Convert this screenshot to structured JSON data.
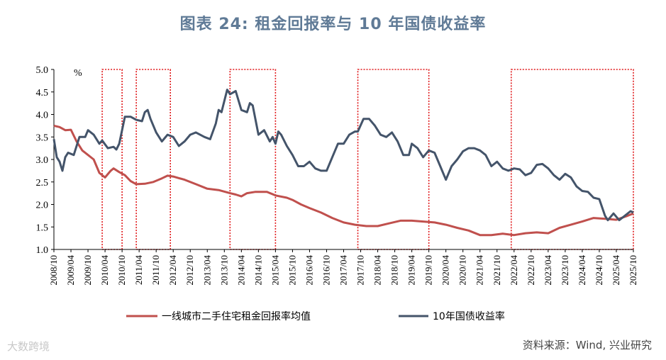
{
  "chart_data": {
    "type": "line",
    "title": "图表 24: 租金回报率与 10 年国债收益率",
    "ylabel": "%",
    "ylim": [
      1.0,
      5.0
    ],
    "yticks": [
      "5.0",
      "4.5",
      "4.0",
      "3.5",
      "3.0",
      "2.5",
      "2.0",
      "1.5",
      "1.0"
    ],
    "x_start": "2008/10",
    "x_tick_labels": [
      "2008/10",
      "2009/04",
      "2009/10",
      "2010/04",
      "2010/10",
      "2011/04",
      "2011/10",
      "2012/04",
      "2012/10",
      "2013/04",
      "2013/10",
      "2014/04",
      "2014/10",
      "2015/04",
      "2015/10",
      "2016/04",
      "2016/10",
      "2017/04",
      "2017/10",
      "2018/04",
      "2018/10",
      "2019/04",
      "2019/10",
      "2020/04",
      "2020/10",
      "2021/04",
      "2021/10",
      "2022/04",
      "2022/10",
      "2023/04",
      "2023/10",
      "2024/04",
      "2024/10",
      "2025/04",
      "2025/10"
    ],
    "highlight_periods": [
      {
        "start": "2010/03",
        "end": "2010/10"
      },
      {
        "start": "2011/03",
        "end": "2012/03"
      },
      {
        "start": "2013/12",
        "end": "2015/04"
      },
      {
        "start": "2017/09",
        "end": "2019/10"
      },
      {
        "start": "2022/03",
        "end": "2025/10"
      }
    ],
    "series": [
      {
        "name": "一线城市二手住宅租金回报率均值",
        "color": "#c0504d",
        "points": [
          [
            "2008/10",
            3.75
          ],
          [
            "2008/12",
            3.72
          ],
          [
            "2009/02",
            3.65
          ],
          [
            "2009/04",
            3.66
          ],
          [
            "2009/06",
            3.4
          ],
          [
            "2009/08",
            3.2
          ],
          [
            "2009/10",
            3.1
          ],
          [
            "2009/12",
            3.0
          ],
          [
            "2010/02",
            2.7
          ],
          [
            "2010/04",
            2.6
          ],
          [
            "2010/06",
            2.75
          ],
          [
            "2010/07",
            2.8
          ],
          [
            "2010/09",
            2.72
          ],
          [
            "2010/11",
            2.65
          ],
          [
            "2011/01",
            2.52
          ],
          [
            "2011/03",
            2.45
          ],
          [
            "2011/06",
            2.46
          ],
          [
            "2011/09",
            2.5
          ],
          [
            "2011/12",
            2.58
          ],
          [
            "2012/02",
            2.64
          ],
          [
            "2012/04",
            2.62
          ],
          [
            "2012/08",
            2.55
          ],
          [
            "2012/12",
            2.45
          ],
          [
            "2013/04",
            2.35
          ],
          [
            "2013/08",
            2.32
          ],
          [
            "2013/12",
            2.25
          ],
          [
            "2014/02",
            2.22
          ],
          [
            "2014/04",
            2.18
          ],
          [
            "2014/06",
            2.25
          ],
          [
            "2014/09",
            2.28
          ],
          [
            "2015/01",
            2.28
          ],
          [
            "2015/04",
            2.2
          ],
          [
            "2015/08",
            2.15
          ],
          [
            "2015/10",
            2.1
          ],
          [
            "2016/01",
            2.0
          ],
          [
            "2016/04",
            1.92
          ],
          [
            "2016/08",
            1.82
          ],
          [
            "2016/12",
            1.7
          ],
          [
            "2017/04",
            1.6
          ],
          [
            "2017/08",
            1.55
          ],
          [
            "2017/12",
            1.52
          ],
          [
            "2018/04",
            1.52
          ],
          [
            "2018/08",
            1.58
          ],
          [
            "2018/12",
            1.64
          ],
          [
            "2019/04",
            1.64
          ],
          [
            "2019/08",
            1.62
          ],
          [
            "2019/12",
            1.6
          ],
          [
            "2020/04",
            1.55
          ],
          [
            "2020/08",
            1.48
          ],
          [
            "2020/12",
            1.42
          ],
          [
            "2021/04",
            1.32
          ],
          [
            "2021/08",
            1.32
          ],
          [
            "2021/12",
            1.35
          ],
          [
            "2022/04",
            1.32
          ],
          [
            "2022/08",
            1.36
          ],
          [
            "2022/12",
            1.38
          ],
          [
            "2023/04",
            1.36
          ],
          [
            "2023/08",
            1.48
          ],
          [
            "2023/12",
            1.55
          ],
          [
            "2024/04",
            1.62
          ],
          [
            "2024/08",
            1.7
          ],
          [
            "2024/12",
            1.68
          ],
          [
            "2025/04",
            1.66
          ],
          [
            "2025/08",
            1.75
          ],
          [
            "2025/10",
            1.8
          ]
        ]
      },
      {
        "name": "10年国债收益率",
        "color": "#44546a",
        "points": [
          [
            "2008/10",
            3.45
          ],
          [
            "2008/11",
            3.05
          ],
          [
            "2008/12",
            2.95
          ],
          [
            "2009/01",
            2.75
          ],
          [
            "2009/02",
            3.05
          ],
          [
            "2009/03",
            3.15
          ],
          [
            "2009/05",
            3.1
          ],
          [
            "2009/07",
            3.5
          ],
          [
            "2009/09",
            3.5
          ],
          [
            "2009/10",
            3.65
          ],
          [
            "2009/12",
            3.55
          ],
          [
            "2010/02",
            3.35
          ],
          [
            "2010/03",
            3.42
          ],
          [
            "2010/05",
            3.25
          ],
          [
            "2010/07",
            3.28
          ],
          [
            "2010/08",
            3.22
          ],
          [
            "2010/09",
            3.35
          ],
          [
            "2010/11",
            3.95
          ],
          [
            "2011/01",
            3.95
          ],
          [
            "2011/03",
            3.88
          ],
          [
            "2011/05",
            3.85
          ],
          [
            "2011/06",
            4.05
          ],
          [
            "2011/07",
            4.1
          ],
          [
            "2011/08",
            3.9
          ],
          [
            "2011/10",
            3.6
          ],
          [
            "2011/12",
            3.4
          ],
          [
            "2012/02",
            3.55
          ],
          [
            "2012/04",
            3.5
          ],
          [
            "2012/06",
            3.3
          ],
          [
            "2012/08",
            3.4
          ],
          [
            "2012/10",
            3.55
          ],
          [
            "2012/12",
            3.6
          ],
          [
            "2013/03",
            3.5
          ],
          [
            "2013/05",
            3.45
          ],
          [
            "2013/07",
            3.8
          ],
          [
            "2013/08",
            4.1
          ],
          [
            "2013/09",
            4.05
          ],
          [
            "2013/11",
            4.55
          ],
          [
            "2013/12",
            4.45
          ],
          [
            "2014/02",
            4.52
          ],
          [
            "2014/04",
            4.1
          ],
          [
            "2014/06",
            4.05
          ],
          [
            "2014/07",
            4.25
          ],
          [
            "2014/08",
            4.2
          ],
          [
            "2014/10",
            3.55
          ],
          [
            "2014/12",
            3.65
          ],
          [
            "2015/02",
            3.4
          ],
          [
            "2015/03",
            3.5
          ],
          [
            "2015/04",
            3.35
          ],
          [
            "2015/05",
            3.62
          ],
          [
            "2015/06",
            3.55
          ],
          [
            "2015/08",
            3.3
          ],
          [
            "2015/10",
            3.1
          ],
          [
            "2015/12",
            2.85
          ],
          [
            "2016/02",
            2.85
          ],
          [
            "2016/04",
            2.95
          ],
          [
            "2016/06",
            2.8
          ],
          [
            "2016/08",
            2.75
          ],
          [
            "2016/10",
            2.75
          ],
          [
            "2016/12",
            3.05
          ],
          [
            "2017/02",
            3.35
          ],
          [
            "2017/04",
            3.35
          ],
          [
            "2017/06",
            3.55
          ],
          [
            "2017/08",
            3.62
          ],
          [
            "2017/09",
            3.62
          ],
          [
            "2017/11",
            3.9
          ],
          [
            "2018/01",
            3.9
          ],
          [
            "2018/03",
            3.75
          ],
          [
            "2018/05",
            3.55
          ],
          [
            "2018/07",
            3.5
          ],
          [
            "2018/09",
            3.6
          ],
          [
            "2018/11",
            3.4
          ],
          [
            "2019/01",
            3.1
          ],
          [
            "2019/03",
            3.1
          ],
          [
            "2019/04",
            3.35
          ],
          [
            "2019/06",
            3.25
          ],
          [
            "2019/08",
            3.05
          ],
          [
            "2019/10",
            3.2
          ],
          [
            "2019/12",
            3.15
          ],
          [
            "2020/02",
            2.85
          ],
          [
            "2020/04",
            2.55
          ],
          [
            "2020/06",
            2.85
          ],
          [
            "2020/08",
            3.0
          ],
          [
            "2020/10",
            3.18
          ],
          [
            "2020/12",
            3.25
          ],
          [
            "2021/02",
            3.25
          ],
          [
            "2021/04",
            3.2
          ],
          [
            "2021/06",
            3.1
          ],
          [
            "2021/08",
            2.85
          ],
          [
            "2021/10",
            2.95
          ],
          [
            "2021/12",
            2.8
          ],
          [
            "2022/02",
            2.75
          ],
          [
            "2022/04",
            2.8
          ],
          [
            "2022/06",
            2.78
          ],
          [
            "2022/08",
            2.65
          ],
          [
            "2022/10",
            2.7
          ],
          [
            "2022/12",
            2.88
          ],
          [
            "2023/02",
            2.9
          ],
          [
            "2023/04",
            2.8
          ],
          [
            "2023/06",
            2.65
          ],
          [
            "2023/08",
            2.55
          ],
          [
            "2023/10",
            2.68
          ],
          [
            "2023/12",
            2.6
          ],
          [
            "2024/02",
            2.4
          ],
          [
            "2024/04",
            2.3
          ],
          [
            "2024/06",
            2.28
          ],
          [
            "2024/08",
            2.15
          ],
          [
            "2024/10",
            2.12
          ],
          [
            "2024/12",
            1.75
          ],
          [
            "2025/01",
            1.65
          ],
          [
            "2025/03",
            1.8
          ],
          [
            "2025/05",
            1.65
          ],
          [
            "2025/07",
            1.75
          ],
          [
            "2025/09",
            1.85
          ],
          [
            "2025/10",
            1.82
          ]
        ]
      }
    ],
    "legend": [
      "一线城市二手住宅租金回报率均值",
      "10年国债收益率"
    ],
    "legend_position": "bottom",
    "grid": false
  },
  "source": "资料来源：Wind, 兴业研究",
  "watermark": "大数跨境"
}
